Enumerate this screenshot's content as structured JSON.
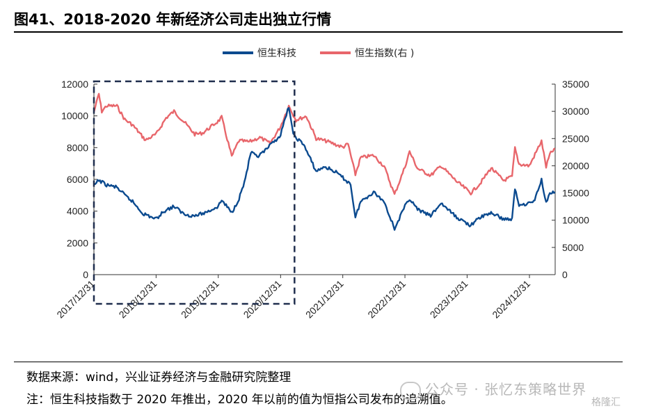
{
  "title": "图41、2018-2020 年新经济公司走出独立行情",
  "source_note": "数据来源：wind，兴业证券经济与金融研究院整理",
  "footnote": "注：恒生科技指数于 2020 年推出，2020 年以前的值为恒指公司发布的追溯值。",
  "watermark": "公众号 · 张忆东策略世界",
  "watermark2": "格隆汇",
  "colors": {
    "hstech": "#0b4a8f",
    "hsi": "#e8666b",
    "highlight_box": "#1f2d4d"
  },
  "chart_data": {
    "type": "line",
    "title": "",
    "xlabel": "",
    "ylabel": "",
    "x_ticks": [
      "2017/12/31",
      "2018/12/31",
      "2019/12/31",
      "2020/12/31",
      "2021/12/31",
      "2022/12/31",
      "2023/12/31",
      "2024/12/31"
    ],
    "y_left": {
      "ylim": [
        0,
        12000
      ],
      "ticks": [
        "0",
        "2000",
        "4000",
        "6000",
        "8000",
        "10000",
        "12000"
      ]
    },
    "y_right": {
      "ylim": [
        0,
        35000
      ],
      "ticks": [
        "0",
        "5000",
        "10000",
        "15000",
        "20000",
        "25000",
        "30000",
        "35000"
      ]
    },
    "legend": {
      "placement": "top-center"
    },
    "grid": false,
    "highlight_range": [
      "2017/12/31",
      "2020/12/31"
    ],
    "series": [
      {
        "name": "恒生科技",
        "axis": "left",
        "color": "#0b4a8f",
        "points": [
          [
            "2017-12-31",
            5600
          ],
          [
            "2018-01-29",
            5950
          ],
          [
            "2018-03-15",
            5650
          ],
          [
            "2018-05-15",
            5500
          ],
          [
            "2018-06-30",
            5000
          ],
          [
            "2018-08-15",
            4600
          ],
          [
            "2018-10-15",
            3850
          ],
          [
            "2018-12-31",
            3500
          ],
          [
            "2019-02-15",
            4000
          ],
          [
            "2019-04-15",
            4300
          ],
          [
            "2019-06-15",
            3800
          ],
          [
            "2019-08-15",
            3700
          ],
          [
            "2019-10-15",
            3900
          ],
          [
            "2019-12-31",
            4300
          ],
          [
            "2020-01-20",
            4700
          ],
          [
            "2020-03-19",
            3900
          ],
          [
            "2020-05-01",
            4800
          ],
          [
            "2020-06-01",
            5800
          ],
          [
            "2020-07-10",
            7700
          ],
          [
            "2020-08-15",
            7400
          ],
          [
            "2020-10-01",
            7800
          ],
          [
            "2020-12-31",
            8800
          ],
          [
            "2021-02-17",
            10600
          ],
          [
            "2021-03-15",
            8800
          ],
          [
            "2021-05-15",
            8200
          ],
          [
            "2021-07-28",
            6500
          ],
          [
            "2021-09-15",
            6800
          ],
          [
            "2021-11-15",
            6500
          ],
          [
            "2021-12-31",
            6100
          ],
          [
            "2022-02-15",
            5700
          ],
          [
            "2022-03-15",
            3600
          ],
          [
            "2022-04-15",
            4600
          ],
          [
            "2022-06-30",
            5200
          ],
          [
            "2022-08-31",
            4600
          ],
          [
            "2022-10-31",
            2900
          ],
          [
            "2022-12-31",
            4300
          ],
          [
            "2023-01-27",
            4800
          ],
          [
            "2023-03-15",
            4100
          ],
          [
            "2023-05-31",
            3700
          ],
          [
            "2023-07-31",
            4500
          ],
          [
            "2023-10-31",
            3600
          ],
          [
            "2024-01-22",
            3100
          ],
          [
            "2024-03-15",
            3600
          ],
          [
            "2024-05-20",
            3900
          ],
          [
            "2024-07-31",
            3500
          ],
          [
            "2024-09-20",
            3500
          ],
          [
            "2024-10-07",
            5400
          ],
          [
            "2024-10-31",
            4400
          ],
          [
            "2024-12-31",
            4500
          ],
          [
            "2025-01-31",
            4700
          ],
          [
            "2025-03-12",
            6000
          ],
          [
            "2025-04-08",
            4500
          ],
          [
            "2025-04-30",
            5200
          ],
          [
            "2025-05-30",
            5200
          ]
        ]
      },
      {
        "name": "恒生指数(右 )",
        "axis": "right",
        "color": "#e8666b",
        "points": [
          [
            "2017-12-31",
            29900
          ],
          [
            "2018-01-29",
            33200
          ],
          [
            "2018-02-15",
            30000
          ],
          [
            "2018-03-15",
            31000
          ],
          [
            "2018-05-15",
            31000
          ],
          [
            "2018-06-30",
            28500
          ],
          [
            "2018-08-15",
            27500
          ],
          [
            "2018-10-30",
            24700
          ],
          [
            "2018-12-31",
            25800
          ],
          [
            "2019-02-28",
            28800
          ],
          [
            "2019-04-15",
            30000
          ],
          [
            "2019-06-15",
            28000
          ],
          [
            "2019-08-15",
            25800
          ],
          [
            "2019-09-30",
            26000
          ],
          [
            "2019-12-31",
            28200
          ],
          [
            "2020-01-20",
            28900
          ],
          [
            "2020-03-19",
            21700
          ],
          [
            "2020-04-30",
            24600
          ],
          [
            "2020-06-30",
            24400
          ],
          [
            "2020-08-31",
            25200
          ],
          [
            "2020-10-30",
            24100
          ],
          [
            "2020-12-31",
            27200
          ],
          [
            "2021-02-17",
            31000
          ],
          [
            "2021-03-31",
            28400
          ],
          [
            "2021-05-31",
            29100
          ],
          [
            "2021-07-28",
            25000
          ],
          [
            "2021-09-30",
            24500
          ],
          [
            "2021-12-31",
            23400
          ],
          [
            "2022-01-31",
            24000
          ],
          [
            "2022-03-15",
            18400
          ],
          [
            "2022-04-15",
            21500
          ],
          [
            "2022-06-30",
            21900
          ],
          [
            "2022-08-31",
            19900
          ],
          [
            "2022-10-31",
            14700
          ],
          [
            "2022-12-31",
            19800
          ],
          [
            "2023-01-27",
            22600
          ],
          [
            "2023-03-15",
            19500
          ],
          [
            "2023-05-31",
            18200
          ],
          [
            "2023-07-31",
            20000
          ],
          [
            "2023-10-31",
            17100
          ],
          [
            "2024-01-22",
            15000
          ],
          [
            "2024-03-15",
            16700
          ],
          [
            "2024-05-20",
            19600
          ],
          [
            "2024-07-31",
            17300
          ],
          [
            "2024-09-20",
            18000
          ],
          [
            "2024-10-07",
            23200
          ],
          [
            "2024-10-31",
            20300
          ],
          [
            "2024-12-31",
            20000
          ],
          [
            "2025-02-28",
            23800
          ],
          [
            "2025-03-12",
            24500
          ],
          [
            "2025-04-08",
            19800
          ],
          [
            "2025-04-30",
            22100
          ],
          [
            "2025-05-30",
            23200
          ]
        ]
      }
    ]
  }
}
